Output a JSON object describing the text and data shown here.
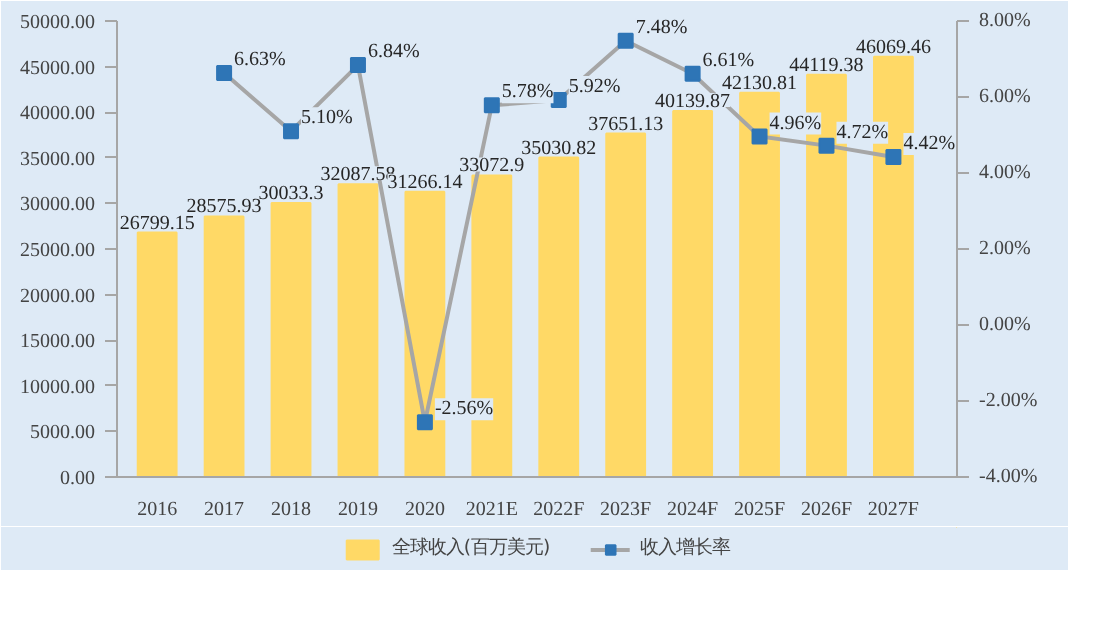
{
  "chart_data": {
    "type": "bar",
    "categories": [
      "2016",
      "2017",
      "2018",
      "2019",
      "2020",
      "2021E",
      "2022F",
      "2023F",
      "2024F",
      "2025F",
      "2026F",
      "2027F"
    ],
    "series": [
      {
        "name": "全球收入(百万美元)",
        "color": "#ffd966",
        "values": [
          26799.15,
          28575.93,
          30033.3,
          32087.58,
          31266.14,
          33072.9,
          35030.82,
          37651.13,
          40139.87,
          42130.81,
          44119.38,
          46069.46
        ],
        "value_labels": [
          "26799.15",
          "28575.93",
          "30033.3",
          "32087.58",
          "31266.14",
          "33072.9",
          "35030.82",
          "37651.13",
          "40139.87",
          "42130.81",
          "44119.38",
          "46069.46"
        ]
      },
      {
        "name": "收入增长率",
        "type": "line",
        "axis": "y2",
        "color": "#a6a6a6",
        "marker": "square",
        "values": [
          null,
          6.63,
          5.1,
          6.84,
          -2.56,
          5.78,
          5.92,
          7.48,
          6.61,
          4.96,
          4.72,
          4.42
        ],
        "value_labels": [
          null,
          "6.63%",
          "5.10%",
          "6.84%",
          "-2.56%",
          "5.78%",
          "5.92%",
          "7.48%",
          "6.61%",
          "4.96%",
          "4.72%",
          "4.42%"
        ]
      }
    ],
    "ylim": [
      0,
      50000
    ],
    "yticks": [
      {
        "value": 0,
        "label": "0.00"
      },
      {
        "value": 5000,
        "label": "5000.00"
      },
      {
        "value": 10000,
        "label": "10000.00"
      },
      {
        "value": 15000,
        "label": "15000.00"
      },
      {
        "value": 20000,
        "label": "20000.00"
      },
      {
        "value": 25000,
        "label": "25000.00"
      },
      {
        "value": 30000,
        "label": "30000.00"
      },
      {
        "value": 35000,
        "label": "35000.00"
      },
      {
        "value": 40000,
        "label": "40000.00"
      },
      {
        "value": 45000,
        "label": "45000.00"
      },
      {
        "value": 50000,
        "label": "50000.00"
      }
    ],
    "y2lim": [
      -4,
      8
    ],
    "y2ticks": [
      {
        "value": -4,
        "label": "-4.00%"
      },
      {
        "value": -2,
        "label": "-2.00%"
      },
      {
        "value": 0,
        "label": "0.00%"
      },
      {
        "value": 2,
        "label": "2.00%"
      },
      {
        "value": 4,
        "label": "4.00%"
      },
      {
        "value": 6,
        "label": "6.00%"
      },
      {
        "value": 8,
        "label": "8.00%"
      }
    ],
    "legend": "bottom",
    "grid": false
  }
}
